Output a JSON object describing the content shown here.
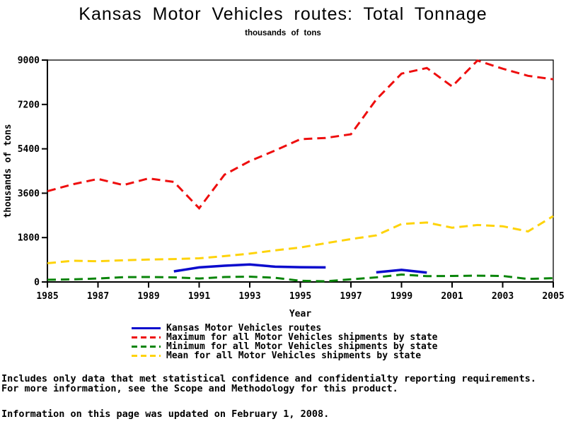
{
  "page": {
    "title": "Kansas Motor Vehicles routes: Total Tonnage",
    "subtitle": "thousands of tons",
    "footnotes": {
      "line1": "Includes only data that met statistical confidence and confidentialty reporting requirements.",
      "line2": "For more information, see the Scope and Methodology for this product.",
      "updated": "Information on this page was updated on February 1, 2008."
    }
  },
  "chart_data": {
    "type": "line",
    "title": "Kansas Motor Vehicles routes: Total Tonnage",
    "subtitle": "thousands of tons",
    "xlabel": "Year",
    "ylabel": "thousands of tons",
    "xlim": [
      1985,
      2005
    ],
    "ylim": [
      0,
      9000
    ],
    "xticks": [
      1985,
      1987,
      1989,
      1991,
      1993,
      1995,
      1997,
      1999,
      2001,
      2003,
      2005
    ],
    "yticks": [
      0,
      1800,
      3600,
      5400,
      7200,
      9000
    ],
    "grid": false,
    "frame": true,
    "legend_position": "bottom",
    "x": [
      1985,
      1986,
      1987,
      1988,
      1989,
      1990,
      1991,
      1992,
      1993,
      1994,
      1995,
      1996,
      1997,
      1998,
      1999,
      2000,
      2001,
      2002,
      2003,
      2004,
      2005
    ],
    "series": [
      {
        "name": "Kansas Motor Vehicles routes",
        "color": "#0b0bcd",
        "style": "solid",
        "width": 3.5,
        "values": [
          null,
          null,
          null,
          null,
          null,
          430,
          590,
          660,
          710,
          620,
          600,
          590,
          null,
          390,
          490,
          380,
          null,
          null,
          null,
          null,
          null
        ]
      },
      {
        "name": "Maximum for all Motor Vehicles shipments by state",
        "color": "#ee0e0e",
        "style": "dashed",
        "dash": "12 7",
        "width": 3,
        "values": [
          3680,
          3960,
          4180,
          3930,
          4200,
          4060,
          2990,
          4350,
          4900,
          5330,
          5790,
          5840,
          5990,
          7400,
          8450,
          8680,
          7930,
          8980,
          8650,
          8360,
          8220
        ]
      },
      {
        "name": "Minimum for all Motor Vehicles shipments by state",
        "color": "#0a850a",
        "style": "dashed",
        "dash": "12 7",
        "width": 3,
        "values": [
          90,
          105,
          140,
          195,
          200,
          185,
          140,
          200,
          215,
          170,
          50,
          30,
          105,
          185,
          300,
          235,
          245,
          255,
          245,
          120,
          155
        ]
      },
      {
        "name": "Mean for all Motor Vehicles shipments by state",
        "color": "#fed30a",
        "style": "dashed",
        "dash": "12 7",
        "width": 3,
        "values": [
          760,
          860,
          840,
          880,
          910,
          930,
          960,
          1050,
          1150,
          1280,
          1400,
          1570,
          1740,
          1890,
          2350,
          2410,
          2200,
          2310,
          2260,
          2050,
          2670
        ]
      }
    ],
    "draw_order": [
      1,
      2,
      3,
      0
    ]
  }
}
